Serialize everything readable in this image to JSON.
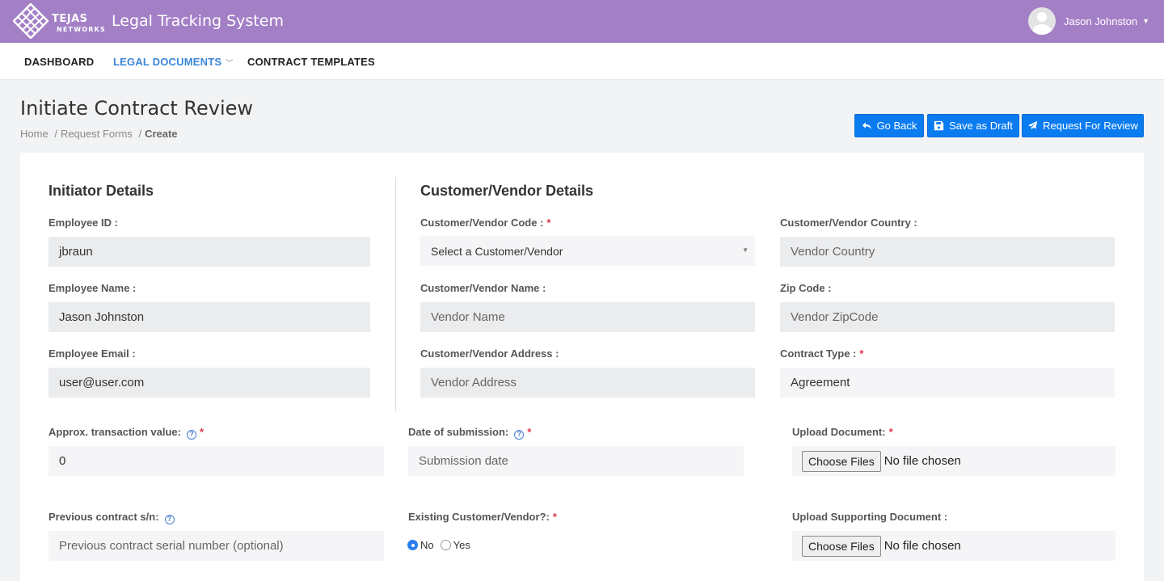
{
  "header": {
    "logo_text": "TEJAS",
    "logo_sub": "NETWORKS",
    "app_title": "Legal Tracking System",
    "user_name": "Jason Johnston"
  },
  "nav": {
    "items": [
      {
        "label": "DASHBOARD"
      },
      {
        "label": "LEGAL DOCUMENTS"
      },
      {
        "label": "CONTRACT TEMPLATES"
      }
    ]
  },
  "page": {
    "title": "Initiate Contract Review",
    "breadcrumb": [
      "Home",
      "Request Forms",
      "Create"
    ]
  },
  "actions": {
    "go_back": "Go Back",
    "save_draft": "Save as Draft",
    "request_review": "Request For Review"
  },
  "initiator": {
    "title": "Initiator Details",
    "employee_id_label": "Employee ID :",
    "employee_id_value": "jbraun",
    "employee_name_label": "Employee Name :",
    "employee_name_value": "Jason Johnston",
    "employee_email_label": "Employee Email :",
    "employee_email_value": "user@user.com"
  },
  "customer": {
    "title": "Customer/Vendor Details",
    "code_label": "Customer/Vendor Code :",
    "code_selected": "Select a Customer/Vendor",
    "country_label": "Customer/Vendor Country :",
    "country_placeholder": "Vendor Country",
    "name_label": "Customer/Vendor Name :",
    "name_placeholder": "Vendor Name",
    "zip_label": "Zip Code :",
    "zip_placeholder": "Vendor ZipCode",
    "address_label": "Customer/Vendor Address :",
    "address_placeholder": "Vendor Address",
    "contract_type_label": "Contract Type :",
    "contract_type_value": "Agreement"
  },
  "transaction": {
    "value_label": "Approx. transaction value:",
    "value": "0",
    "date_label": "Date of submission:",
    "date_placeholder": "Submission date",
    "upload_label": "Upload Document:",
    "choose_files": "Choose Files",
    "no_file": "No file chosen",
    "previous_label": "Previous contract s/n:",
    "previous_placeholder": "Previous contract serial number (optional)",
    "existing_label": "Existing Customer/Vendor?:",
    "radio_no": "No",
    "radio_yes": "Yes",
    "upload_supporting_label": "Upload Supporting Document :",
    "choose_files_2": "Choose Files",
    "no_file_2": "No file chosen"
  },
  "colors": {
    "header_bg": "#a37fc6",
    "accent": "#0a7cf0",
    "nav_active": "#3a86d8",
    "required": "#e0344c"
  },
  "icons": {
    "go_back": "undo-arrow-icon",
    "save_draft": "floppy-disk-icon",
    "request_review": "paper-plane-icon",
    "help": "question-circle-icon"
  }
}
